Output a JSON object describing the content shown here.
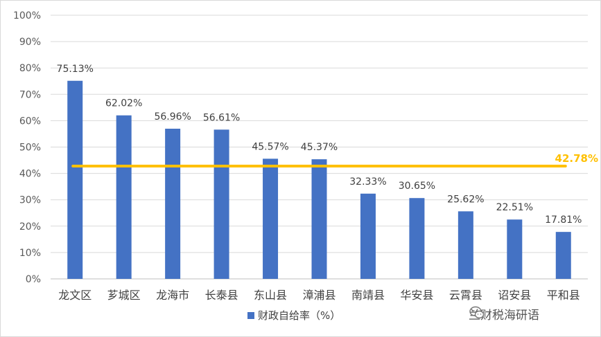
{
  "chart_data": {
    "type": "bar",
    "categories": [
      "龙文区",
      "芗城区",
      "龙海市",
      "长泰县",
      "东山县",
      "漳浦县",
      "南靖县",
      "华安县",
      "云霄县",
      "诏安县",
      "平和县"
    ],
    "series": [
      {
        "name": "财政自给率（%）",
        "values": [
          75.13,
          62.02,
          56.96,
          56.61,
          45.57,
          45.37,
          32.33,
          30.65,
          25.62,
          22.51,
          17.81
        ],
        "labels": [
          "75.13%",
          "62.02%",
          "56.96%",
          "56.61%",
          "45.57%",
          "45.37%",
          "32.33%",
          "30.65%",
          "25.62%",
          "22.51%",
          "17.81%"
        ],
        "color": "#4472c4"
      }
    ],
    "average": {
      "value": 42.78,
      "label": "42.78%",
      "color": "#ffc000"
    },
    "ylim": [
      0,
      100
    ],
    "yticks": [
      "0%",
      "10%",
      "20%",
      "30%",
      "40%",
      "50%",
      "60%",
      "70%",
      "80%",
      "90%",
      "100%"
    ],
    "grid": true,
    "legend_position": "bottom"
  },
  "watermark": {
    "icon": "wechat-icon",
    "text": "兰财税海研语"
  }
}
